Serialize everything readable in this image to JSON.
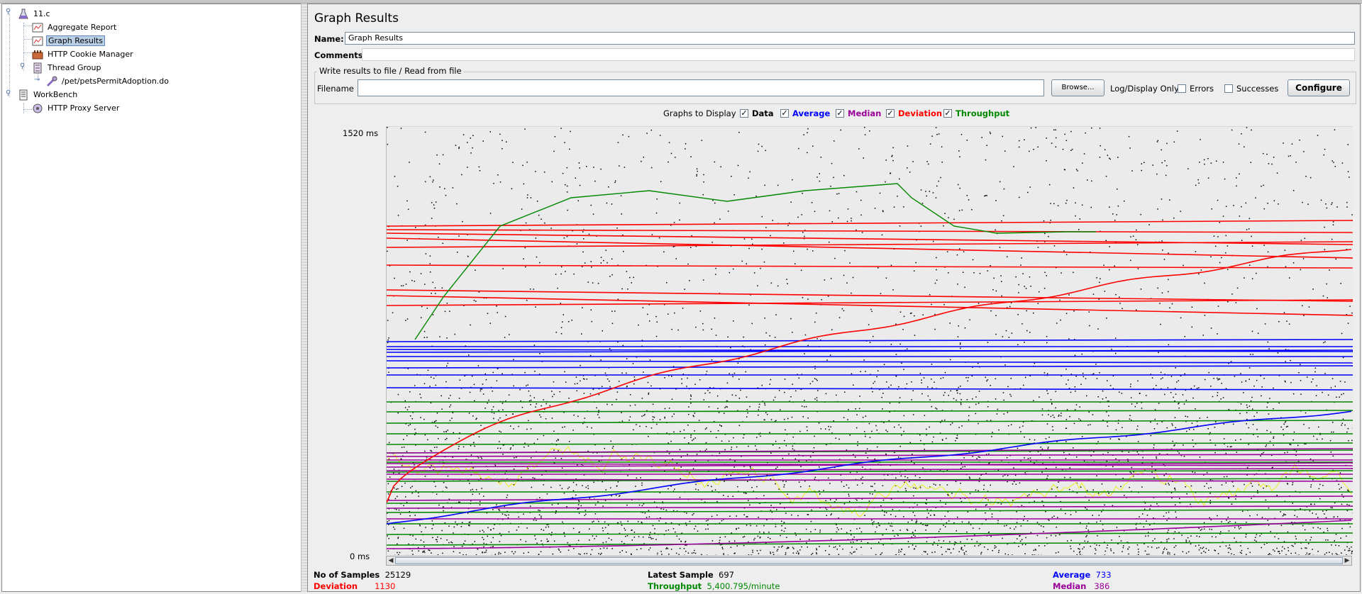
{
  "tree": {
    "items": [
      {
        "label": "11.c",
        "icon": "flask-icon"
      },
      {
        "label": "Aggregate Report",
        "icon": "report-icon"
      },
      {
        "label": "Graph Results",
        "icon": "graph-icon"
      },
      {
        "label": "HTTP Cookie Manager",
        "icon": "cookie-manager-icon"
      },
      {
        "label": "Thread Group",
        "icon": "thread-group-icon"
      },
      {
        "label": "/pet/petsPermitAdoption.do",
        "icon": "sampler-icon"
      },
      {
        "label": "WorkBench",
        "icon": "workbench-icon"
      },
      {
        "label": "HTTP Proxy Server",
        "icon": "proxy-icon"
      }
    ]
  },
  "panel": {
    "title": "Graph Results",
    "name_label": "Name:",
    "name_value": "Graph Results",
    "comments_label": "Comments:",
    "comments_value": "",
    "file_group_title": "Write results to file / Read from file",
    "filename_label": "Filename",
    "filename_value": "",
    "browse_label": "Browse...",
    "log_display_label": "Log/Display Only:",
    "errors_label": "Errors",
    "successes_label": "Successes",
    "configure_label": "Configure"
  },
  "graphs_to_display": {
    "label": "Graphs to Display",
    "options": [
      {
        "label": "Data",
        "checked": true,
        "color": "#000000"
      },
      {
        "label": "Average",
        "checked": true,
        "color": "#0000ff"
      },
      {
        "label": "Median",
        "checked": true,
        "color": "#990099"
      },
      {
        "label": "Deviation",
        "checked": true,
        "color": "#ff0000"
      },
      {
        "label": "Throughput",
        "checked": true,
        "color": "#008800"
      }
    ]
  },
  "chart_data": {
    "type": "scatter",
    "y_top_label": "1520 ms",
    "y_bottom_label": "0 ms",
    "ylim": [
      0,
      1520
    ],
    "grid": false,
    "series": [
      {
        "name": "Data",
        "color": "#000000"
      },
      {
        "name": "Average",
        "color": "#0000ff"
      },
      {
        "name": "Median",
        "color": "#990099"
      },
      {
        "name": "Deviation",
        "color": "#ff0000"
      },
      {
        "name": "Throughput",
        "color": "#008800"
      }
    ]
  },
  "stats": {
    "samples_label": "No of Samples",
    "samples_value": "25129",
    "deviation_label": "Deviation",
    "deviation_value": "1130",
    "latest_label": "Latest Sample",
    "latest_value": "697",
    "throughput_label": "Throughput",
    "throughput_value": "5,400.795/minute",
    "average_label": "Average",
    "average_value": "733",
    "median_label": "Median",
    "median_value": "386"
  }
}
